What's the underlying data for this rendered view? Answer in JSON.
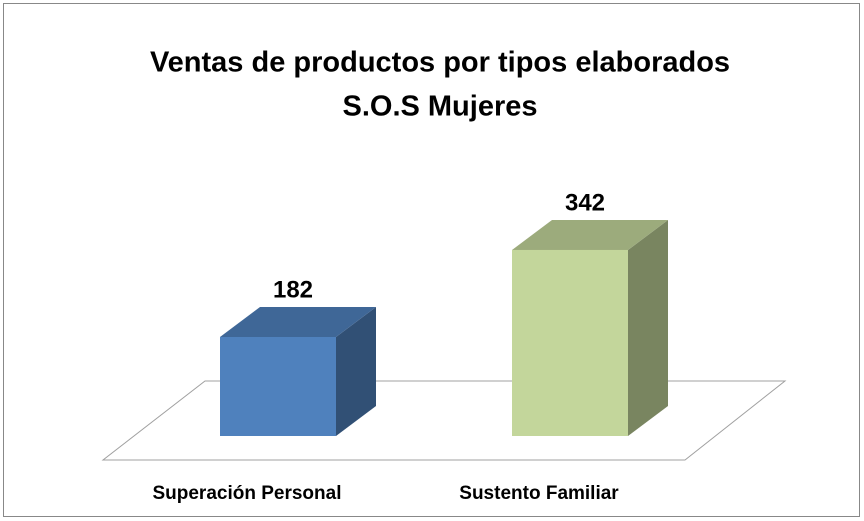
{
  "chart_data": {
    "type": "bar3d",
    "title": [
      "Ventas de productos por tipos elaborados",
      "S.O.S Mujeres"
    ],
    "categories": [
      "Superación Personal",
      "Sustento Familiar"
    ],
    "values": [
      182,
      342
    ],
    "colors": [
      "#4f81bd",
      "#c3d69b"
    ]
  }
}
